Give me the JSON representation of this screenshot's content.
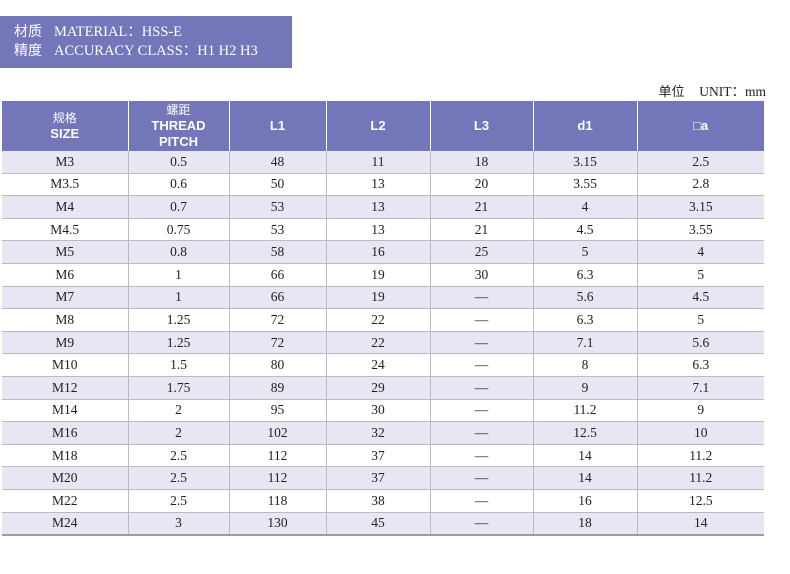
{
  "banner": {
    "material_cn": "材质",
    "material_en": "MATERIAL：HSS-E",
    "accuracy_cn": "精度",
    "accuracy_en": "ACCURACY CLASS：H1 H2 H3"
  },
  "unit": {
    "cn": "单位",
    "en": "UNIT：mm"
  },
  "table": {
    "headers": [
      {
        "cn": "规格",
        "en": "SIZE"
      },
      {
        "cn": "螺距",
        "en": "THREAD",
        "en2": "PITCH"
      },
      {
        "en": "L1"
      },
      {
        "en": "L2"
      },
      {
        "en": "L3"
      },
      {
        "en": "d1"
      },
      {
        "en": "□a"
      }
    ],
    "rows": [
      [
        "M3",
        "0.5",
        "48",
        "11",
        "18",
        "3.15",
        "2.5"
      ],
      [
        "M3.5",
        "0.6",
        "50",
        "13",
        "20",
        "3.55",
        "2.8"
      ],
      [
        "M4",
        "0.7",
        "53",
        "13",
        "21",
        "4",
        "3.15"
      ],
      [
        "M4.5",
        "0.75",
        "53",
        "13",
        "21",
        "4.5",
        "3.55"
      ],
      [
        "M5",
        "0.8",
        "58",
        "16",
        "25",
        "5",
        "4"
      ],
      [
        "M6",
        "1",
        "66",
        "19",
        "30",
        "6.3",
        "5"
      ],
      [
        "M7",
        "1",
        "66",
        "19",
        "—",
        "5.6",
        "4.5"
      ],
      [
        "M8",
        "1.25",
        "72",
        "22",
        "—",
        "6.3",
        "5"
      ],
      [
        "M9",
        "1.25",
        "72",
        "22",
        "—",
        "7.1",
        "5.6"
      ],
      [
        "M10",
        "1.5",
        "80",
        "24",
        "—",
        "8",
        "6.3"
      ],
      [
        "M12",
        "1.75",
        "89",
        "29",
        "—",
        "9",
        "7.1"
      ],
      [
        "M14",
        "2",
        "95",
        "30",
        "—",
        "11.2",
        "9"
      ],
      [
        "M16",
        "2",
        "102",
        "32",
        "—",
        "12.5",
        "10"
      ],
      [
        "M18",
        "2.5",
        "112",
        "37",
        "—",
        "14",
        "11.2"
      ],
      [
        "M20",
        "2.5",
        "112",
        "37",
        "—",
        "14",
        "11.2"
      ],
      [
        "M22",
        "2.5",
        "118",
        "38",
        "—",
        "16",
        "12.5"
      ],
      [
        "M24",
        "3",
        "130",
        "45",
        "—",
        "18",
        "14"
      ]
    ]
  }
}
